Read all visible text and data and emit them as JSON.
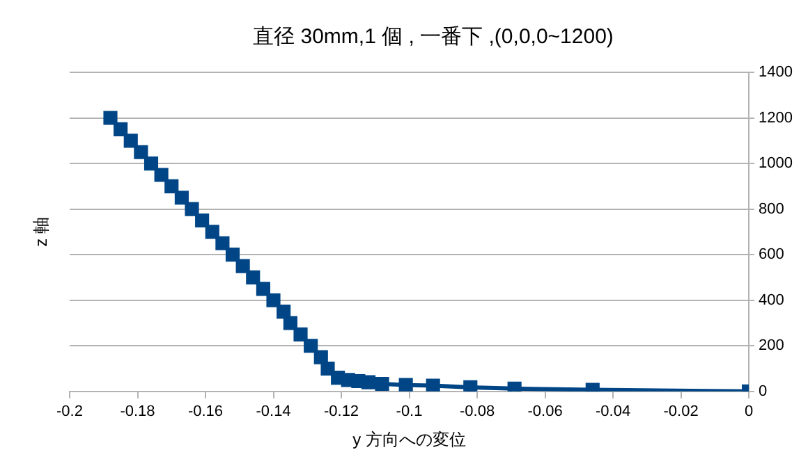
{
  "chart_data": {
    "type": "line",
    "title": "直径 30mm,1 個 , 一番下 ,(0,0,0~1200)",
    "xlabel": "y 方向への変位",
    "ylabel": "z 軸",
    "x": [
      -0.188,
      -0.185,
      -0.182,
      -0.179,
      -0.176,
      -0.173,
      -0.17,
      -0.167,
      -0.164,
      -0.161,
      -0.158,
      -0.155,
      -0.152,
      -0.149,
      -0.146,
      -0.143,
      -0.14,
      -0.137,
      -0.135,
      -0.132,
      -0.129,
      -0.126,
      -0.124,
      -0.121,
      -0.118,
      -0.115,
      -0.112,
      -0.108,
      -0.101,
      -0.093,
      -0.082,
      -0.069,
      -0.046,
      0
    ],
    "series": [
      {
        "color": "#004586",
        "values": [
          1200,
          1150,
          1100,
          1050,
          1000,
          950,
          900,
          850,
          800,
          750,
          700,
          650,
          600,
          550,
          500,
          450,
          400,
          350,
          300,
          250,
          200,
          150,
          100,
          60,
          50,
          45,
          40,
          33,
          28,
          25,
          18,
          12,
          7,
          0
        ]
      }
    ],
    "xlim": [
      -0.2,
      0
    ],
    "xticks": [
      -0.2,
      -0.18,
      -0.16,
      -0.14,
      -0.12,
      -0.1,
      -0.08,
      -0.06,
      -0.04,
      -0.02,
      0
    ],
    "ylim": [
      0,
      1400
    ],
    "yticks": [
      0,
      200,
      400,
      600,
      800,
      1000,
      1200,
      1400
    ],
    "grid": "y",
    "legend": false,
    "marker": "square",
    "line_style": "solid"
  }
}
